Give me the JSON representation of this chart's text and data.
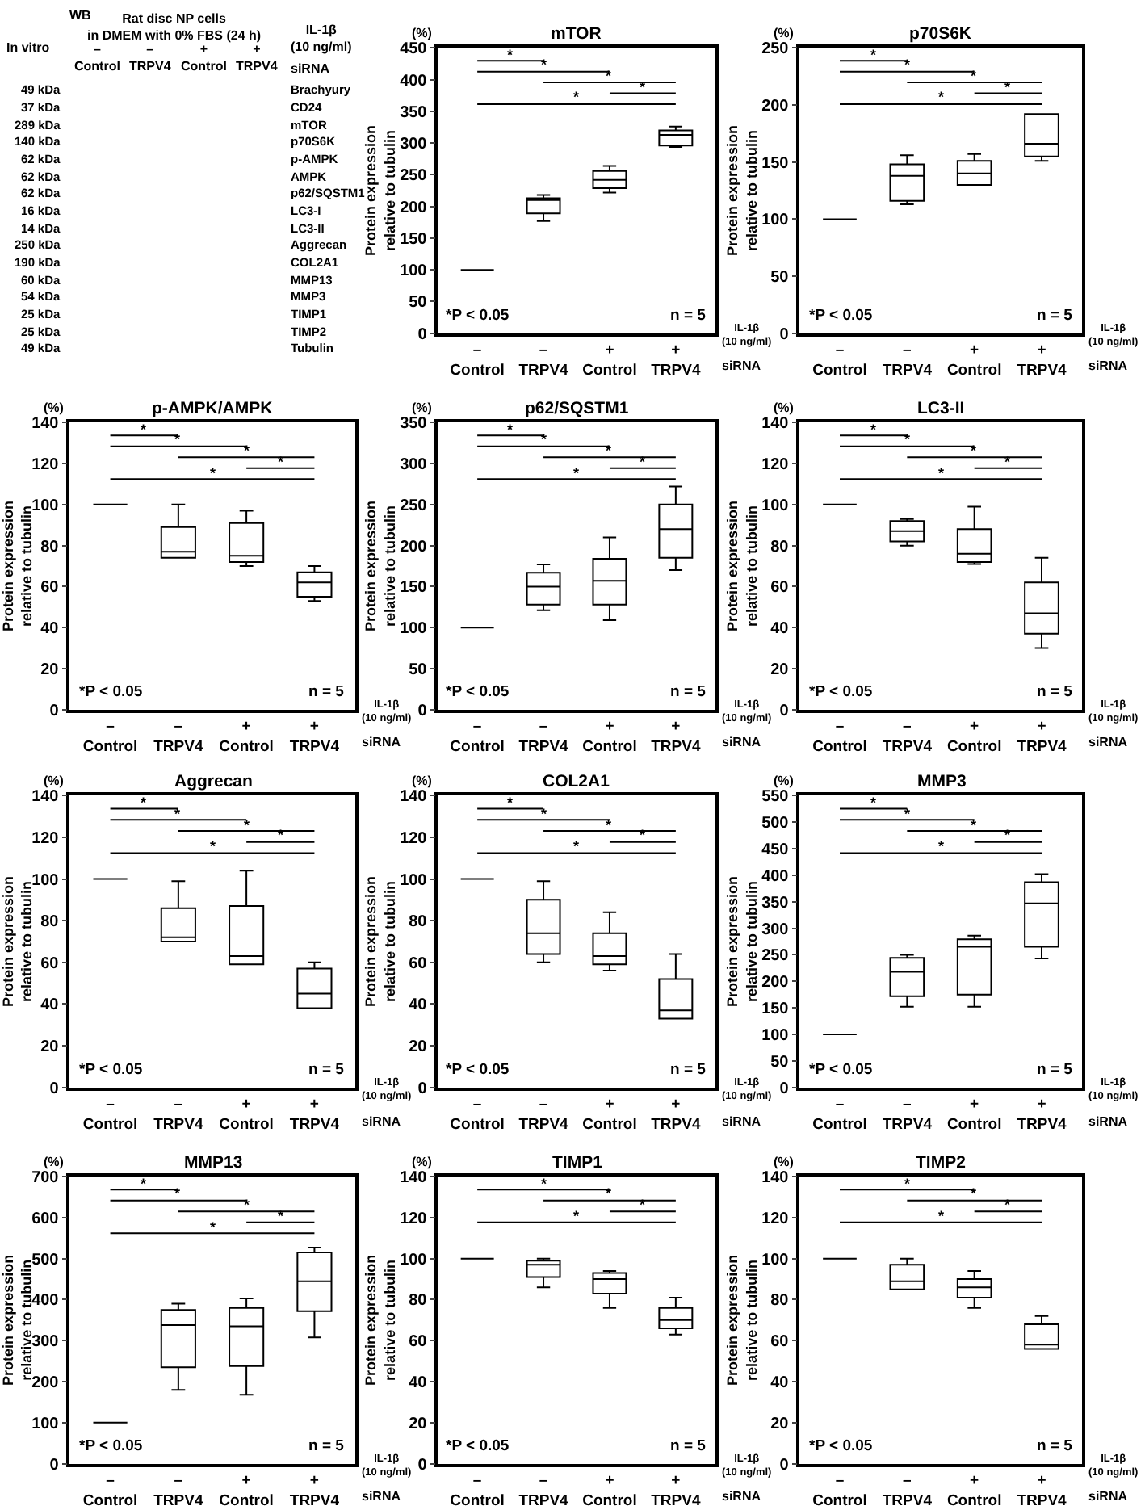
{
  "chart_data": [
    {
      "type": "other",
      "categories": [
        "–\nControl",
        "–\nTRPV4",
        "+\nControl",
        "+\nTRPV4"
      ],
      "y_categories": [
        "49 kDa",
        "37 kDa",
        "289 kDa",
        "140 kDa",
        "62 kDa",
        "62 kDa",
        "62 kDa",
        "16 kDa",
        "14 kDa",
        "250 kDa",
        "190 kDa",
        "60 kDa",
        "54 kDa",
        "25 kDa",
        "25 kDa",
        "49 kDa"
      ],
      "y2_categories": [
        "Brachyury",
        "CD24",
        "mTOR",
        "p70S6K",
        "p-AMPK",
        "AMPK",
        "p62/SQSTM1",
        "LC3-I",
        "LC3-II",
        "Aggrecan",
        "COL2A1",
        "MMP13",
        "MMP3",
        "TIMP1",
        "TIMP2",
        "Tubulin"
      ],
      "annotations": [
        "WB",
        "Rat disc NP cells\nin DMEM with 0% FBS (24 h)",
        "In vitro",
        "IL-1β\n(10 ng/ml)",
        "siRNA"
      ]
    },
    {
      "type": "box",
      "title": "mTOR",
      "ylabel": "Protein expression\nrelative to tubulin",
      "categories": [
        "–\nControl",
        "–\nTRPV4",
        "+\nControl",
        "+\nTRPV4"
      ],
      "ylim": [
        0,
        450
      ],
      "yticks": [
        0,
        50,
        100,
        150,
        200,
        250,
        300,
        350,
        400,
        450
      ],
      "boxes": [
        {
          "low": 100,
          "q1": 100,
          "median": 100,
          "q3": 100,
          "high": 100
        },
        {
          "low": 177,
          "q1": 189,
          "median": 210,
          "q3": 213,
          "high": 218
        },
        {
          "low": 222,
          "q1": 229,
          "median": 242,
          "q3": 256,
          "high": 264
        },
        {
          "low": 294,
          "q1": 296,
          "median": 313,
          "q3": 320,
          "high": 326
        }
      ],
      "annotations": [
        "(%)",
        "*P < 0.05",
        "n = 5",
        "IL-1β\n(10 ng/ml)",
        "siRNA",
        "*",
        "*",
        "*",
        "*",
        "*"
      ]
    },
    {
      "type": "box",
      "title": "p70S6K",
      "ylabel": "Protein expression\nrelative to tubulin",
      "categories": [
        "–\nControl",
        "–\nTRPV4",
        "+\nControl",
        "+\nTRPV4"
      ],
      "ylim": [
        0,
        250
      ],
      "yticks": [
        0,
        50,
        100,
        150,
        200,
        250
      ],
      "boxes": [
        {
          "low": 100,
          "q1": 100,
          "median": 100,
          "q3": 100,
          "high": 100
        },
        {
          "low": 113,
          "q1": 116,
          "median": 138,
          "q3": 148,
          "high": 156
        },
        {
          "low": 130,
          "q1": 130,
          "median": 140,
          "q3": 151,
          "high": 157
        },
        {
          "low": 151,
          "q1": 155,
          "median": 166,
          "q3": 192,
          "high": 192
        }
      ],
      "annotations": [
        "(%)",
        "*P < 0.05",
        "n = 5",
        "IL-1β\n(10 ng/ml)",
        "siRNA",
        "*",
        "*",
        "*",
        "*",
        "*"
      ]
    },
    {
      "type": "box",
      "title": "p-AMPK/AMPK",
      "ylabel": "Protein expression\nrelative to tubulin",
      "categories": [
        "–\nControl",
        "–\nTRPV4",
        "+\nControl",
        "+\nTRPV4"
      ],
      "ylim": [
        0,
        140
      ],
      "yticks": [
        0,
        20,
        40,
        60,
        80,
        100,
        120,
        140
      ],
      "boxes": [
        {
          "low": 100,
          "q1": 100,
          "median": 100,
          "q3": 100,
          "high": 100
        },
        {
          "low": 74,
          "q1": 74,
          "median": 77,
          "q3": 89,
          "high": 100
        },
        {
          "low": 70,
          "q1": 72,
          "median": 75,
          "q3": 91,
          "high": 97
        },
        {
          "low": 53,
          "q1": 55,
          "median": 62,
          "q3": 67,
          "high": 70
        }
      ],
      "annotations": [
        "(%)",
        "*P < 0.05",
        "n = 5",
        "IL-1β\n(10 ng/ml)",
        "siRNA",
        "*",
        "*",
        "*",
        "*",
        "*"
      ]
    },
    {
      "type": "box",
      "title": "p62/SQSTM1",
      "ylabel": "Protein expression\nrelative to tubulin",
      "categories": [
        "–\nControl",
        "–\nTRPV4",
        "+\nControl",
        "+\nTRPV4"
      ],
      "ylim": [
        0,
        350
      ],
      "yticks": [
        0,
        50,
        100,
        150,
        200,
        250,
        300,
        350
      ],
      "boxes": [
        {
          "low": 100,
          "q1": 100,
          "median": 100,
          "q3": 100,
          "high": 100
        },
        {
          "low": 121,
          "q1": 128,
          "median": 150,
          "q3": 167,
          "high": 177
        },
        {
          "low": 109,
          "q1": 128,
          "median": 157,
          "q3": 184,
          "high": 210
        },
        {
          "low": 170,
          "q1": 185,
          "median": 220,
          "q3": 250,
          "high": 272
        }
      ],
      "annotations": [
        "(%)",
        "*P < 0.05",
        "n = 5",
        "IL-1β\n(10 ng/ml)",
        "siRNA",
        "*",
        "*",
        "*",
        "*",
        "*"
      ]
    },
    {
      "type": "box",
      "title": "LC3-II",
      "ylabel": "Protein expression\nrelative to tubulin",
      "categories": [
        "–\nControl",
        "–\nTRPV4",
        "+\nControl",
        "+\nTRPV4"
      ],
      "ylim": [
        0,
        140
      ],
      "yticks": [
        0,
        20,
        40,
        60,
        80,
        100,
        120,
        140
      ],
      "boxes": [
        {
          "low": 100,
          "q1": 100,
          "median": 100,
          "q3": 100,
          "high": 100
        },
        {
          "low": 80,
          "q1": 82,
          "median": 87,
          "q3": 92,
          "high": 93
        },
        {
          "low": 71,
          "q1": 72,
          "median": 76,
          "q3": 88,
          "high": 99
        },
        {
          "low": 30,
          "q1": 37,
          "median": 47,
          "q3": 62,
          "high": 74
        }
      ],
      "annotations": [
        "(%)",
        "*P < 0.05",
        "n = 5",
        "IL-1β\n(10 ng/ml)",
        "siRNA",
        "*",
        "*",
        "*",
        "*",
        "*"
      ]
    },
    {
      "type": "box",
      "title": "Aggrecan",
      "ylabel": "Protein expression\nrelative to tubulin",
      "categories": [
        "–\nControl",
        "–\nTRPV4",
        "+\nControl",
        "+\nTRPV4"
      ],
      "ylim": [
        0,
        140
      ],
      "yticks": [
        0,
        20,
        40,
        60,
        80,
        100,
        120,
        140
      ],
      "boxes": [
        {
          "low": 100,
          "q1": 100,
          "median": 100,
          "q3": 100,
          "high": 100
        },
        {
          "low": 70,
          "q1": 70,
          "median": 72,
          "q3": 86,
          "high": 99
        },
        {
          "low": 59,
          "q1": 59,
          "median": 63,
          "q3": 87,
          "high": 104
        },
        {
          "low": 38,
          "q1": 38,
          "median": 45,
          "q3": 57,
          "high": 60
        }
      ],
      "annotations": [
        "(%)",
        "*P < 0.05",
        "n = 5",
        "IL-1β\n(10 ng/ml)",
        "siRNA",
        "*",
        "*",
        "*",
        "*",
        "*"
      ]
    },
    {
      "type": "box",
      "title": "COL2A1",
      "ylabel": "Protein expression\nrelative to tubulin",
      "categories": [
        "–\nControl",
        "–\nTRPV4",
        "+\nControl",
        "+\nTRPV4"
      ],
      "ylim": [
        0,
        140
      ],
      "yticks": [
        0,
        20,
        40,
        60,
        80,
        100,
        120,
        140
      ],
      "boxes": [
        {
          "low": 100,
          "q1": 100,
          "median": 100,
          "q3": 100,
          "high": 100
        },
        {
          "low": 60,
          "q1": 64,
          "median": 74,
          "q3": 90,
          "high": 99
        },
        {
          "low": 56,
          "q1": 59,
          "median": 63,
          "q3": 74,
          "high": 84
        },
        {
          "low": 33,
          "q1": 33,
          "median": 37,
          "q3": 52,
          "high": 64
        }
      ],
      "annotations": [
        "(%)",
        "*P < 0.05",
        "n = 5",
        "IL-1β\n(10 ng/ml)",
        "siRNA",
        "*",
        "*",
        "*",
        "*",
        "*"
      ]
    },
    {
      "type": "box",
      "title": "MMP3",
      "ylabel": "Protein expression\nrelative to tubulin",
      "categories": [
        "–\nControl",
        "–\nTRPV4",
        "+\nControl",
        "+\nTRPV4"
      ],
      "ylim": [
        0,
        550
      ],
      "yticks": [
        0,
        50,
        100,
        150,
        200,
        250,
        300,
        350,
        400,
        450,
        500,
        550
      ],
      "boxes": [
        {
          "low": 100,
          "q1": 100,
          "median": 100,
          "q3": 100,
          "high": 100
        },
        {
          "low": 152,
          "q1": 172,
          "median": 218,
          "q3": 244,
          "high": 250
        },
        {
          "low": 152,
          "q1": 175,
          "median": 265,
          "q3": 279,
          "high": 286
        },
        {
          "low": 243,
          "q1": 265,
          "median": 347,
          "q3": 387,
          "high": 402
        }
      ],
      "annotations": [
        "(%)",
        "*P < 0.05",
        "n = 5",
        "IL-1β\n(10 ng/ml)",
        "siRNA",
        "*",
        "*",
        "*",
        "*",
        "*"
      ]
    },
    {
      "type": "box",
      "title": "MMP13",
      "ylabel": "Protein expression\nrelative to tubulin",
      "categories": [
        "–\nControl",
        "–\nTRPV4",
        "+\nControl",
        "+\nTRPV4"
      ],
      "ylim": [
        0,
        700
      ],
      "yticks": [
        0,
        100,
        200,
        300,
        400,
        500,
        600,
        700
      ],
      "boxes": [
        {
          "low": 100,
          "q1": 100,
          "median": 100,
          "q3": 100,
          "high": 100
        },
        {
          "low": 180,
          "q1": 235,
          "median": 338,
          "q3": 375,
          "high": 390
        },
        {
          "low": 168,
          "q1": 238,
          "median": 335,
          "q3": 380,
          "high": 403
        },
        {
          "low": 308,
          "q1": 372,
          "median": 445,
          "q3": 515,
          "high": 527
        }
      ],
      "annotations": [
        "(%)",
        "*P < 0.05",
        "n = 5",
        "IL-1β\n(10 ng/ml)",
        "siRNA",
        "*",
        "*",
        "*",
        "*",
        "*"
      ]
    },
    {
      "type": "box",
      "title": "TIMP1",
      "ylabel": "Protein expression\nrelative to tubulin",
      "categories": [
        "–\nControl",
        "–\nTRPV4",
        "+\nControl",
        "+\nTRPV4"
      ],
      "ylim": [
        0,
        140
      ],
      "yticks": [
        0,
        20,
        40,
        60,
        80,
        100,
        120,
        140
      ],
      "boxes": [
        {
          "low": 100,
          "q1": 100,
          "median": 100,
          "q3": 100,
          "high": 100
        },
        {
          "low": 86,
          "q1": 91,
          "median": 97,
          "q3": 99,
          "high": 100
        },
        {
          "low": 76,
          "q1": 83,
          "median": 90,
          "q3": 93,
          "high": 94
        },
        {
          "low": 63,
          "q1": 66,
          "median": 70,
          "q3": 76,
          "high": 81
        }
      ],
      "annotations": [
        "(%)",
        "*P < 0.05",
        "n = 5",
        "IL-1β\n(10 ng/ml)",
        "siRNA",
        "*",
        "*",
        "*",
        "*"
      ]
    },
    {
      "type": "box",
      "title": "TIMP2",
      "ylabel": "Protein expression\nrelative to tubulin",
      "categories": [
        "–\nControl",
        "–\nTRPV4",
        "+\nControl",
        "+\nTRPV4"
      ],
      "ylim": [
        0,
        140
      ],
      "yticks": [
        0,
        20,
        40,
        60,
        80,
        100,
        120,
        140
      ],
      "boxes": [
        {
          "low": 100,
          "q1": 100,
          "median": 100,
          "q3": 100,
          "high": 100
        },
        {
          "low": 85,
          "q1": 85,
          "median": 89,
          "q3": 97,
          "high": 100
        },
        {
          "low": 76,
          "q1": 81,
          "median": 86,
          "q3": 90,
          "high": 94
        },
        {
          "low": 56,
          "q1": 56,
          "median": 58,
          "q3": 68,
          "high": 72
        }
      ],
      "annotations": [
        "(%)",
        "*P < 0.05",
        "n = 5",
        "IL-1β\n(10 ng/ml)",
        "siRNA",
        "*",
        "*",
        "*",
        "*"
      ]
    }
  ]
}
